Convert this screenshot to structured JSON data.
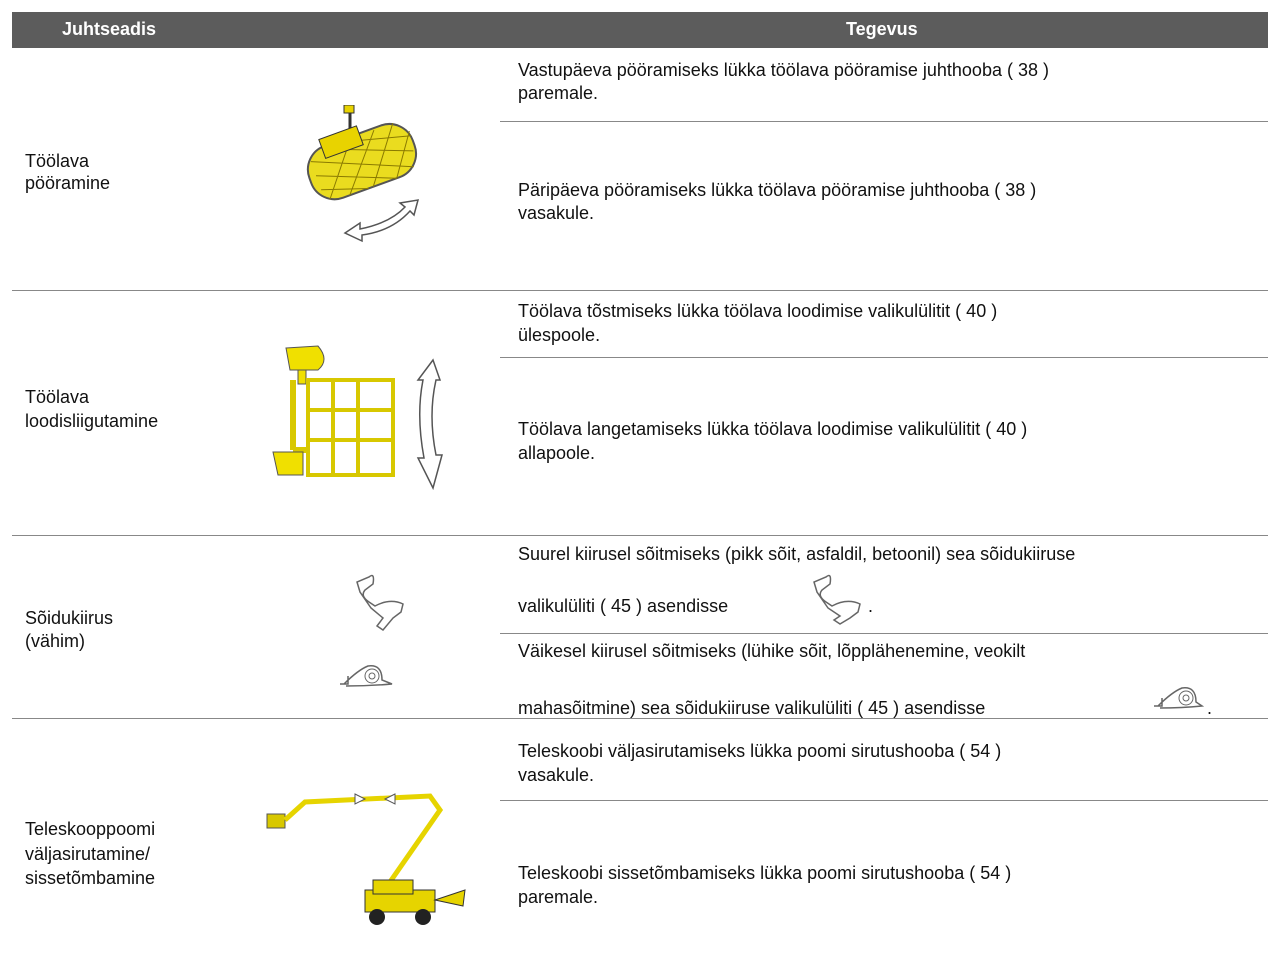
{
  "table": {
    "header": [
      "Juhtseadis",
      "Tegevus"
    ],
    "rows": [
      {
        "control": [
          "Töölava",
          "pööramine"
        ],
        "actions": [
          [
            "Vastupäeva pööramiseks lükka töölava pööramise juhthooba ( 38 )",
            "paremale."
          ],
          [
            "Päripäeva pööramiseks lükka töölava pööramise juhthooba ( 38 )",
            "vasakule."
          ]
        ]
      },
      {
        "control": [
          "Töölava",
          "loodisliigutamine"
        ],
        "actions": [
          [
            "Töölava tõstmiseks lükka töölava loodimise valikulülitit ( 40 )",
            "ülespoole."
          ],
          [
            "Töölava langetamiseks lükka töölava loodimise valikulülitit ( 40 )",
            "allapoole."
          ]
        ]
      },
      {
        "control": [
          "Sõidukiirus",
          "(vähim)"
        ],
        "actions": [
          [
            "Suurel kiirusel sõitmiseks (pikk sõit, asfaldil, betoonil) sea sõidukiiruse",
            "valikulüliti ( 45 ) asendisse",
            "."
          ],
          [
            "Väikesel kiirusel sõitmiseks (lühike sõit, lõpplähenemine, veokilt",
            "mahasõitmine) sea sõidukiiruse valikulüliti ( 45 ) asendisse",
            "."
          ]
        ]
      },
      {
        "control": [
          "Teleskooppoomi",
          "väljasirutamine/",
          "sissetõmbamine"
        ],
        "actions": [
          [
            "Teleskoobi väljasirutamiseks lükka poomi sirutushooba ( 54 )",
            "vasakule."
          ],
          [
            "Teleskoobi sissetõmbamiseks lükka poomi sirutushooba ( 54 )",
            "paremale."
          ]
        ]
      }
    ]
  }
}
